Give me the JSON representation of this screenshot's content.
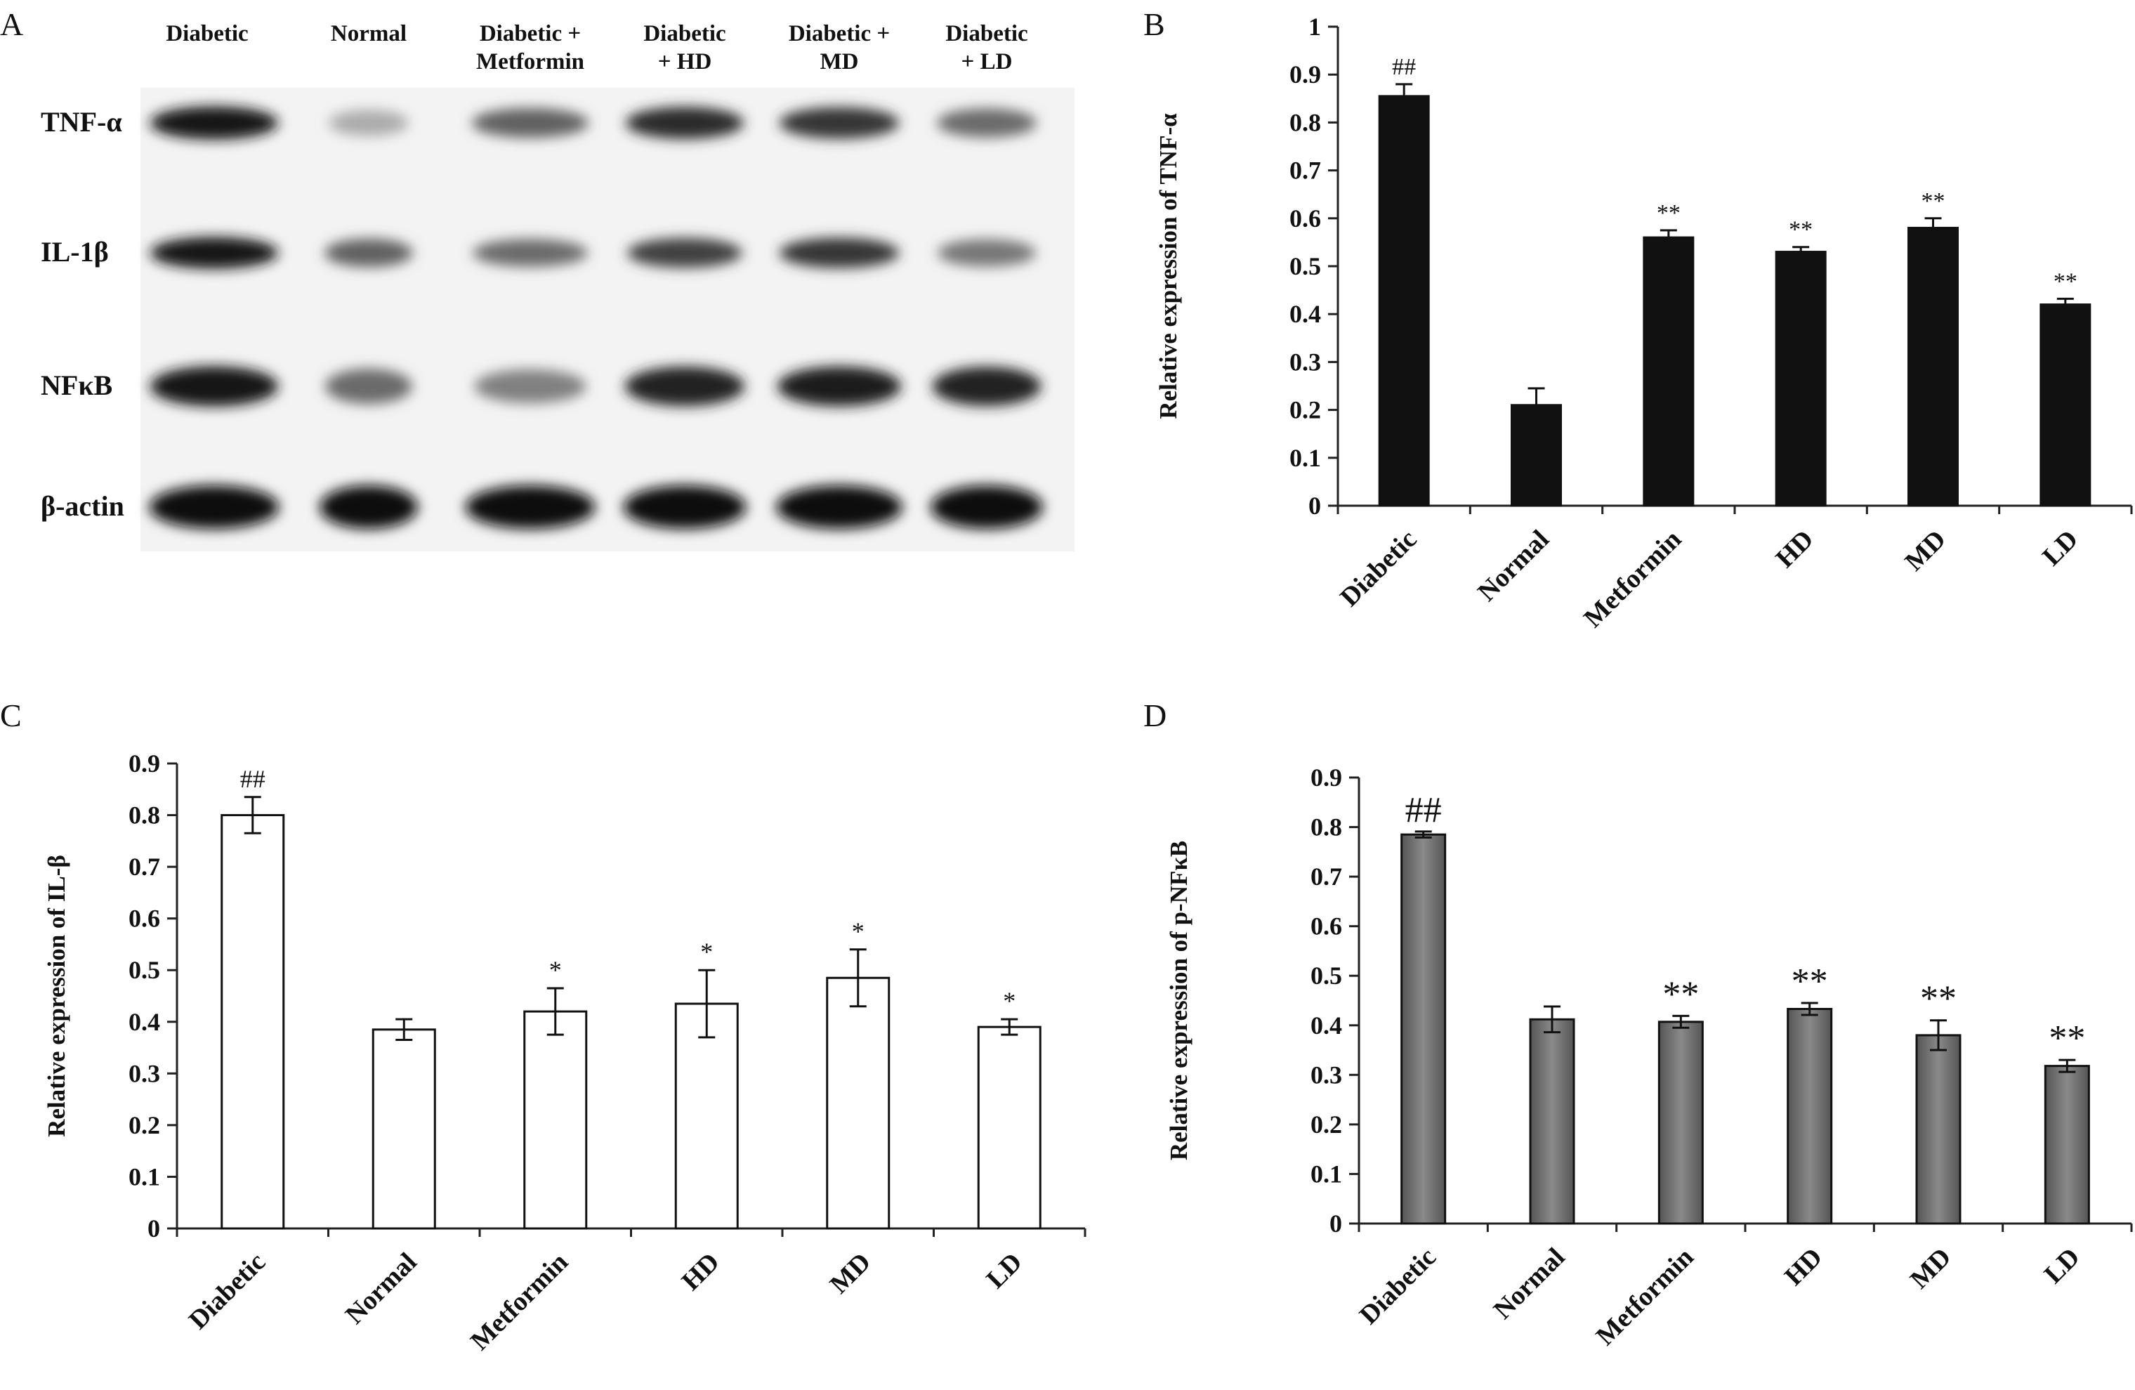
{
  "panel_letters": [
    "A",
    "B",
    "C",
    "D"
  ],
  "blot": {
    "lanes": [
      {
        "lines": [
          "Diabetic"
        ]
      },
      {
        "lines": [
          "Normal"
        ]
      },
      {
        "lines": [
          "Diabetic +",
          "Metformin"
        ]
      },
      {
        "lines": [
          "Diabetic",
          "+ HD"
        ]
      },
      {
        "lines": [
          "Diabetic +",
          "MD"
        ]
      },
      {
        "lines": [
          "Diabetic",
          "+ LD"
        ]
      }
    ],
    "rows": [
      {
        "label": "TNF-α",
        "intensity": [
          0.95,
          0.25,
          0.6,
          0.85,
          0.8,
          0.55
        ]
      },
      {
        "label": "IL-1β",
        "intensity": [
          0.95,
          0.6,
          0.55,
          0.75,
          0.8,
          0.5
        ]
      },
      {
        "label": "NFκB",
        "intensity": [
          0.95,
          0.55,
          0.45,
          0.9,
          0.92,
          0.88
        ]
      },
      {
        "label": "β-actin",
        "intensity": [
          1.0,
          1.0,
          1.0,
          1.0,
          1.0,
          1.0
        ]
      }
    ]
  },
  "chart_data": [
    {
      "panel": "B",
      "type": "bar",
      "categories": [
        "Diabetic",
        "Normal",
        "Metformin",
        "HD",
        "MD",
        "LD"
      ],
      "values": [
        0.855,
        0.21,
        0.56,
        0.53,
        0.58,
        0.42
      ],
      "errors": [
        0.025,
        0.035,
        0.015,
        0.01,
        0.02,
        0.012
      ],
      "annotations": [
        "##",
        "",
        "**",
        "**",
        "**",
        "**"
      ],
      "ylabel": "Relative expression of TNF-α",
      "ylim": [
        0,
        1
      ],
      "yticks": [
        "0",
        "0.1",
        "0.2",
        "0.3",
        "0.4",
        "0.5",
        "0.6",
        "0.7",
        "0.8",
        "0.9",
        "1"
      ],
      "bar_color": "#111111",
      "grid": false
    },
    {
      "panel": "C",
      "type": "bar",
      "categories": [
        "Diabetic",
        "Normal",
        "Metformin",
        "HD",
        "MD",
        "LD"
      ],
      "values": [
        0.8,
        0.385,
        0.42,
        0.435,
        0.485,
        0.39
      ],
      "errors": [
        0.035,
        0.02,
        0.045,
        0.065,
        0.055,
        0.015
      ],
      "annotations": [
        "##",
        "",
        "*",
        "*",
        "*",
        "*"
      ],
      "ylabel": "Relative expression of IL-β",
      "ylim": [
        0,
        0.9
      ],
      "yticks": [
        "0",
        "0.1",
        "0.2",
        "0.3",
        "0.4",
        "0.5",
        "0.6",
        "0.7",
        "0.8",
        "0.9"
      ],
      "bar_color": "#ffffff",
      "grid": false
    },
    {
      "panel": "D",
      "type": "bar",
      "categories": [
        "Diabetic",
        "Normal",
        "Metformin",
        "HD",
        "MD",
        "LD"
      ],
      "values": [
        0.785,
        0.412,
        0.407,
        0.433,
        0.38,
        0.318
      ],
      "errors": [
        0.006,
        0.026,
        0.012,
        0.012,
        0.03,
        0.012
      ],
      "annotations": [
        "##",
        "",
        "**",
        "**",
        "**",
        "**"
      ],
      "ylabel": "Relative expression of p-NFκB",
      "ylim": [
        0,
        0.9
      ],
      "yticks": [
        "0",
        "0.1",
        "0.2",
        "0.3",
        "0.4",
        "0.5",
        "0.6",
        "0.7",
        "0.8",
        "0.9"
      ],
      "bar_color": "#707070",
      "grid": false
    }
  ]
}
